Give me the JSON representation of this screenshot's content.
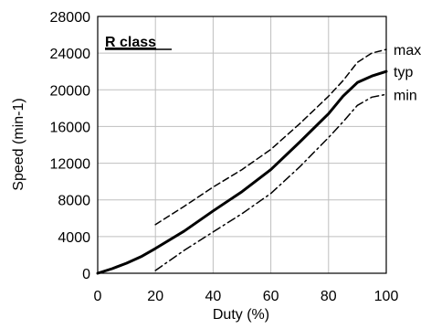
{
  "chart_data": {
    "type": "line",
    "xlabel": "Duty (%)",
    "ylabel": "Speed (min-1)",
    "xlim": [
      0,
      100
    ],
    "ylim": [
      0,
      28000
    ],
    "xticks": [
      0,
      20,
      40,
      60,
      80,
      100
    ],
    "yticks": [
      0,
      4000,
      8000,
      12000,
      16000,
      20000,
      24000,
      28000
    ],
    "grid": true,
    "annotation": "R class",
    "series": [
      {
        "name": "max",
        "style": "dashed",
        "points": [
          [
            20,
            5300
          ],
          [
            30,
            7300
          ],
          [
            40,
            9400
          ],
          [
            50,
            11300
          ],
          [
            60,
            13500
          ],
          [
            70,
            16300
          ],
          [
            80,
            19300
          ],
          [
            85,
            21000
          ],
          [
            90,
            23000
          ],
          [
            95,
            24000
          ],
          [
            100,
            24400
          ]
        ]
      },
      {
        "name": "typ",
        "style": "solid",
        "points": [
          [
            0,
            0
          ],
          [
            5,
            500
          ],
          [
            10,
            1100
          ],
          [
            15,
            1800
          ],
          [
            20,
            2700
          ],
          [
            30,
            4600
          ],
          [
            40,
            6800
          ],
          [
            50,
            8900
          ],
          [
            60,
            11300
          ],
          [
            70,
            14300
          ],
          [
            80,
            17400
          ],
          [
            85,
            19300
          ],
          [
            90,
            20800
          ],
          [
            95,
            21500
          ],
          [
            100,
            22000
          ]
        ]
      },
      {
        "name": "min",
        "style": "dashdot",
        "points": [
          [
            20,
            300
          ],
          [
            30,
            2500
          ],
          [
            40,
            4500
          ],
          [
            50,
            6500
          ],
          [
            60,
            8700
          ],
          [
            70,
            11600
          ],
          [
            80,
            14800
          ],
          [
            85,
            16500
          ],
          [
            90,
            18300
          ],
          [
            95,
            19200
          ],
          [
            100,
            19500
          ]
        ]
      }
    ]
  }
}
